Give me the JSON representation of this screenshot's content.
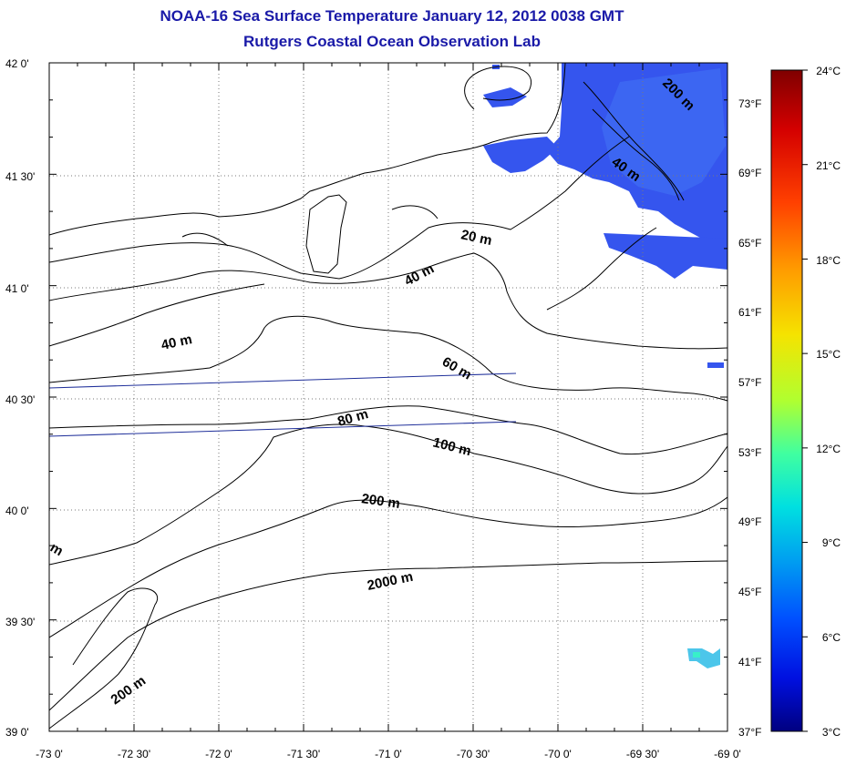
{
  "title": {
    "line1": "NOAA-16 Sea Surface Temperature January 12, 2012 0038 GMT",
    "line2": "Rutgers Coastal Ocean Observation Lab"
  },
  "map": {
    "lon_range": [
      -73,
      -69
    ],
    "lat_range": [
      39,
      42
    ],
    "lat_ticks": [
      "42 0'",
      "41 30'",
      "41 0'",
      "40 30'",
      "40 0'",
      "39 30'",
      "39 0'"
    ],
    "lon_ticks": [
      "-73 0'",
      "-72 30'",
      "-72 0'",
      "-71 30'",
      "-71 0'",
      "-70 30'",
      "-70 0'",
      "-69 30'",
      "-69 0'"
    ],
    "fahrenheit_ticks": [
      "73°F",
      "69°F",
      "65°F",
      "61°F",
      "57°F",
      "53°F",
      "49°F",
      "45°F",
      "41°F",
      "37°F"
    ],
    "grid": true,
    "contour_labels": [
      "20 m",
      "40 m",
      "40 m",
      "60 m",
      "80 m",
      "100 m",
      "200 m",
      "2000 m",
      "200 m",
      "200 m",
      "m",
      "40 m"
    ],
    "colors": {
      "land_outline": "#000000",
      "sst_cold": "#2b3fe6",
      "sst_mid": "#3b6cf0",
      "track_lines": "#1f2f9a",
      "title": "#1a1aa8"
    }
  },
  "colorbar": {
    "celsius_ticks": [
      "24°C",
      "21°C",
      "18°C",
      "15°C",
      "12°C",
      "9°C",
      "6°C",
      "3°C"
    ],
    "range_c": [
      3,
      24
    ],
    "stops": [
      "#7f0000",
      "#d40000",
      "#ff4000",
      "#ff9a00",
      "#f5e300",
      "#b0ff30",
      "#40ffa0",
      "#00e0e0",
      "#00a0f0",
      "#0050ff",
      "#0010e0",
      "#000080"
    ]
  }
}
